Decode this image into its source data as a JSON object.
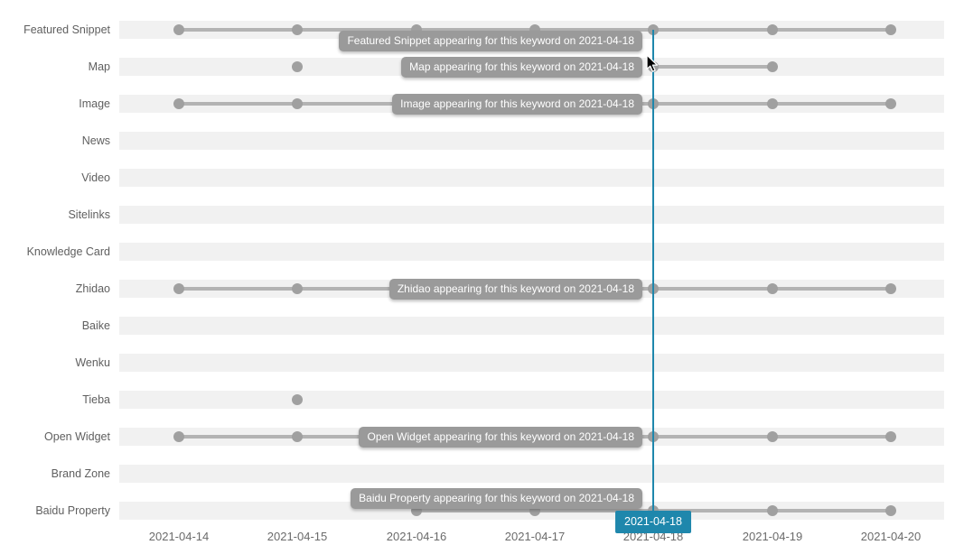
{
  "chart_data": {
    "type": "scatter",
    "title": "",
    "x_labels": [
      "2021-04-14",
      "2021-04-15",
      "2021-04-16",
      "2021-04-17",
      "2021-04-18",
      "2021-04-19",
      "2021-04-20"
    ],
    "rows": [
      {
        "label": "Featured Snippet",
        "present_on": [
          "2021-04-14",
          "2021-04-15",
          "2021-04-16",
          "2021-04-17",
          "2021-04-18",
          "2021-04-19",
          "2021-04-20"
        ]
      },
      {
        "label": "Map",
        "present_on": [
          "2021-04-15",
          "2021-04-18",
          "2021-04-19"
        ]
      },
      {
        "label": "Image",
        "present_on": [
          "2021-04-14",
          "2021-04-15",
          "2021-04-16",
          "2021-04-17",
          "2021-04-18",
          "2021-04-19",
          "2021-04-20"
        ]
      },
      {
        "label": "News",
        "present_on": []
      },
      {
        "label": "Video",
        "present_on": []
      },
      {
        "label": "Sitelinks",
        "present_on": []
      },
      {
        "label": "Knowledge Card",
        "present_on": []
      },
      {
        "label": "Zhidao",
        "present_on": [
          "2021-04-14",
          "2021-04-15",
          "2021-04-16",
          "2021-04-17",
          "2021-04-18",
          "2021-04-19",
          "2021-04-20"
        ]
      },
      {
        "label": "Baike",
        "present_on": []
      },
      {
        "label": "Wenku",
        "present_on": []
      },
      {
        "label": "Tieba",
        "present_on": [
          "2021-04-15"
        ]
      },
      {
        "label": "Open Widget",
        "present_on": [
          "2021-04-14",
          "2021-04-15",
          "2021-04-16",
          "2021-04-17",
          "2021-04-18",
          "2021-04-19",
          "2021-04-20"
        ]
      },
      {
        "label": "Brand Zone",
        "present_on": []
      },
      {
        "label": "Baidu Property",
        "present_on": [
          "2021-04-16",
          "2021-04-17",
          "2021-04-18",
          "2021-04-19",
          "2021-04-20"
        ]
      }
    ],
    "grid": false,
    "legend": false
  },
  "tooltips": [
    {
      "row": "Featured Snippet",
      "text": "Featured Snippet appearing for this keyword on 2021-04-18"
    },
    {
      "row": "Map",
      "text": "Map appearing for this keyword on 2021-04-18"
    },
    {
      "row": "Image",
      "text": "Image appearing for this keyword on 2021-04-18"
    },
    {
      "row": "Zhidao",
      "text": "Zhidao appearing for this keyword on 2021-04-18"
    },
    {
      "row": "Open Widget",
      "text": "Open Widget appearing for this keyword on 2021-04-18"
    },
    {
      "row": "Baidu Property",
      "text": "Baidu Property appearing for this keyword on 2021-04-18"
    }
  ],
  "crosshair": {
    "date": "2021-04-18",
    "badge_label": "2021-04-18"
  },
  "colors": {
    "accent": "#1f87ac",
    "track": "#f1f1f1",
    "dot": "#a0a0a0",
    "line": "#b3b3b3",
    "tooltip_bg": "#9a9a9a",
    "tooltip_text": "#ffffff",
    "label_text": "#5f5f5f",
    "axis_text": "#6b6b6b"
  }
}
